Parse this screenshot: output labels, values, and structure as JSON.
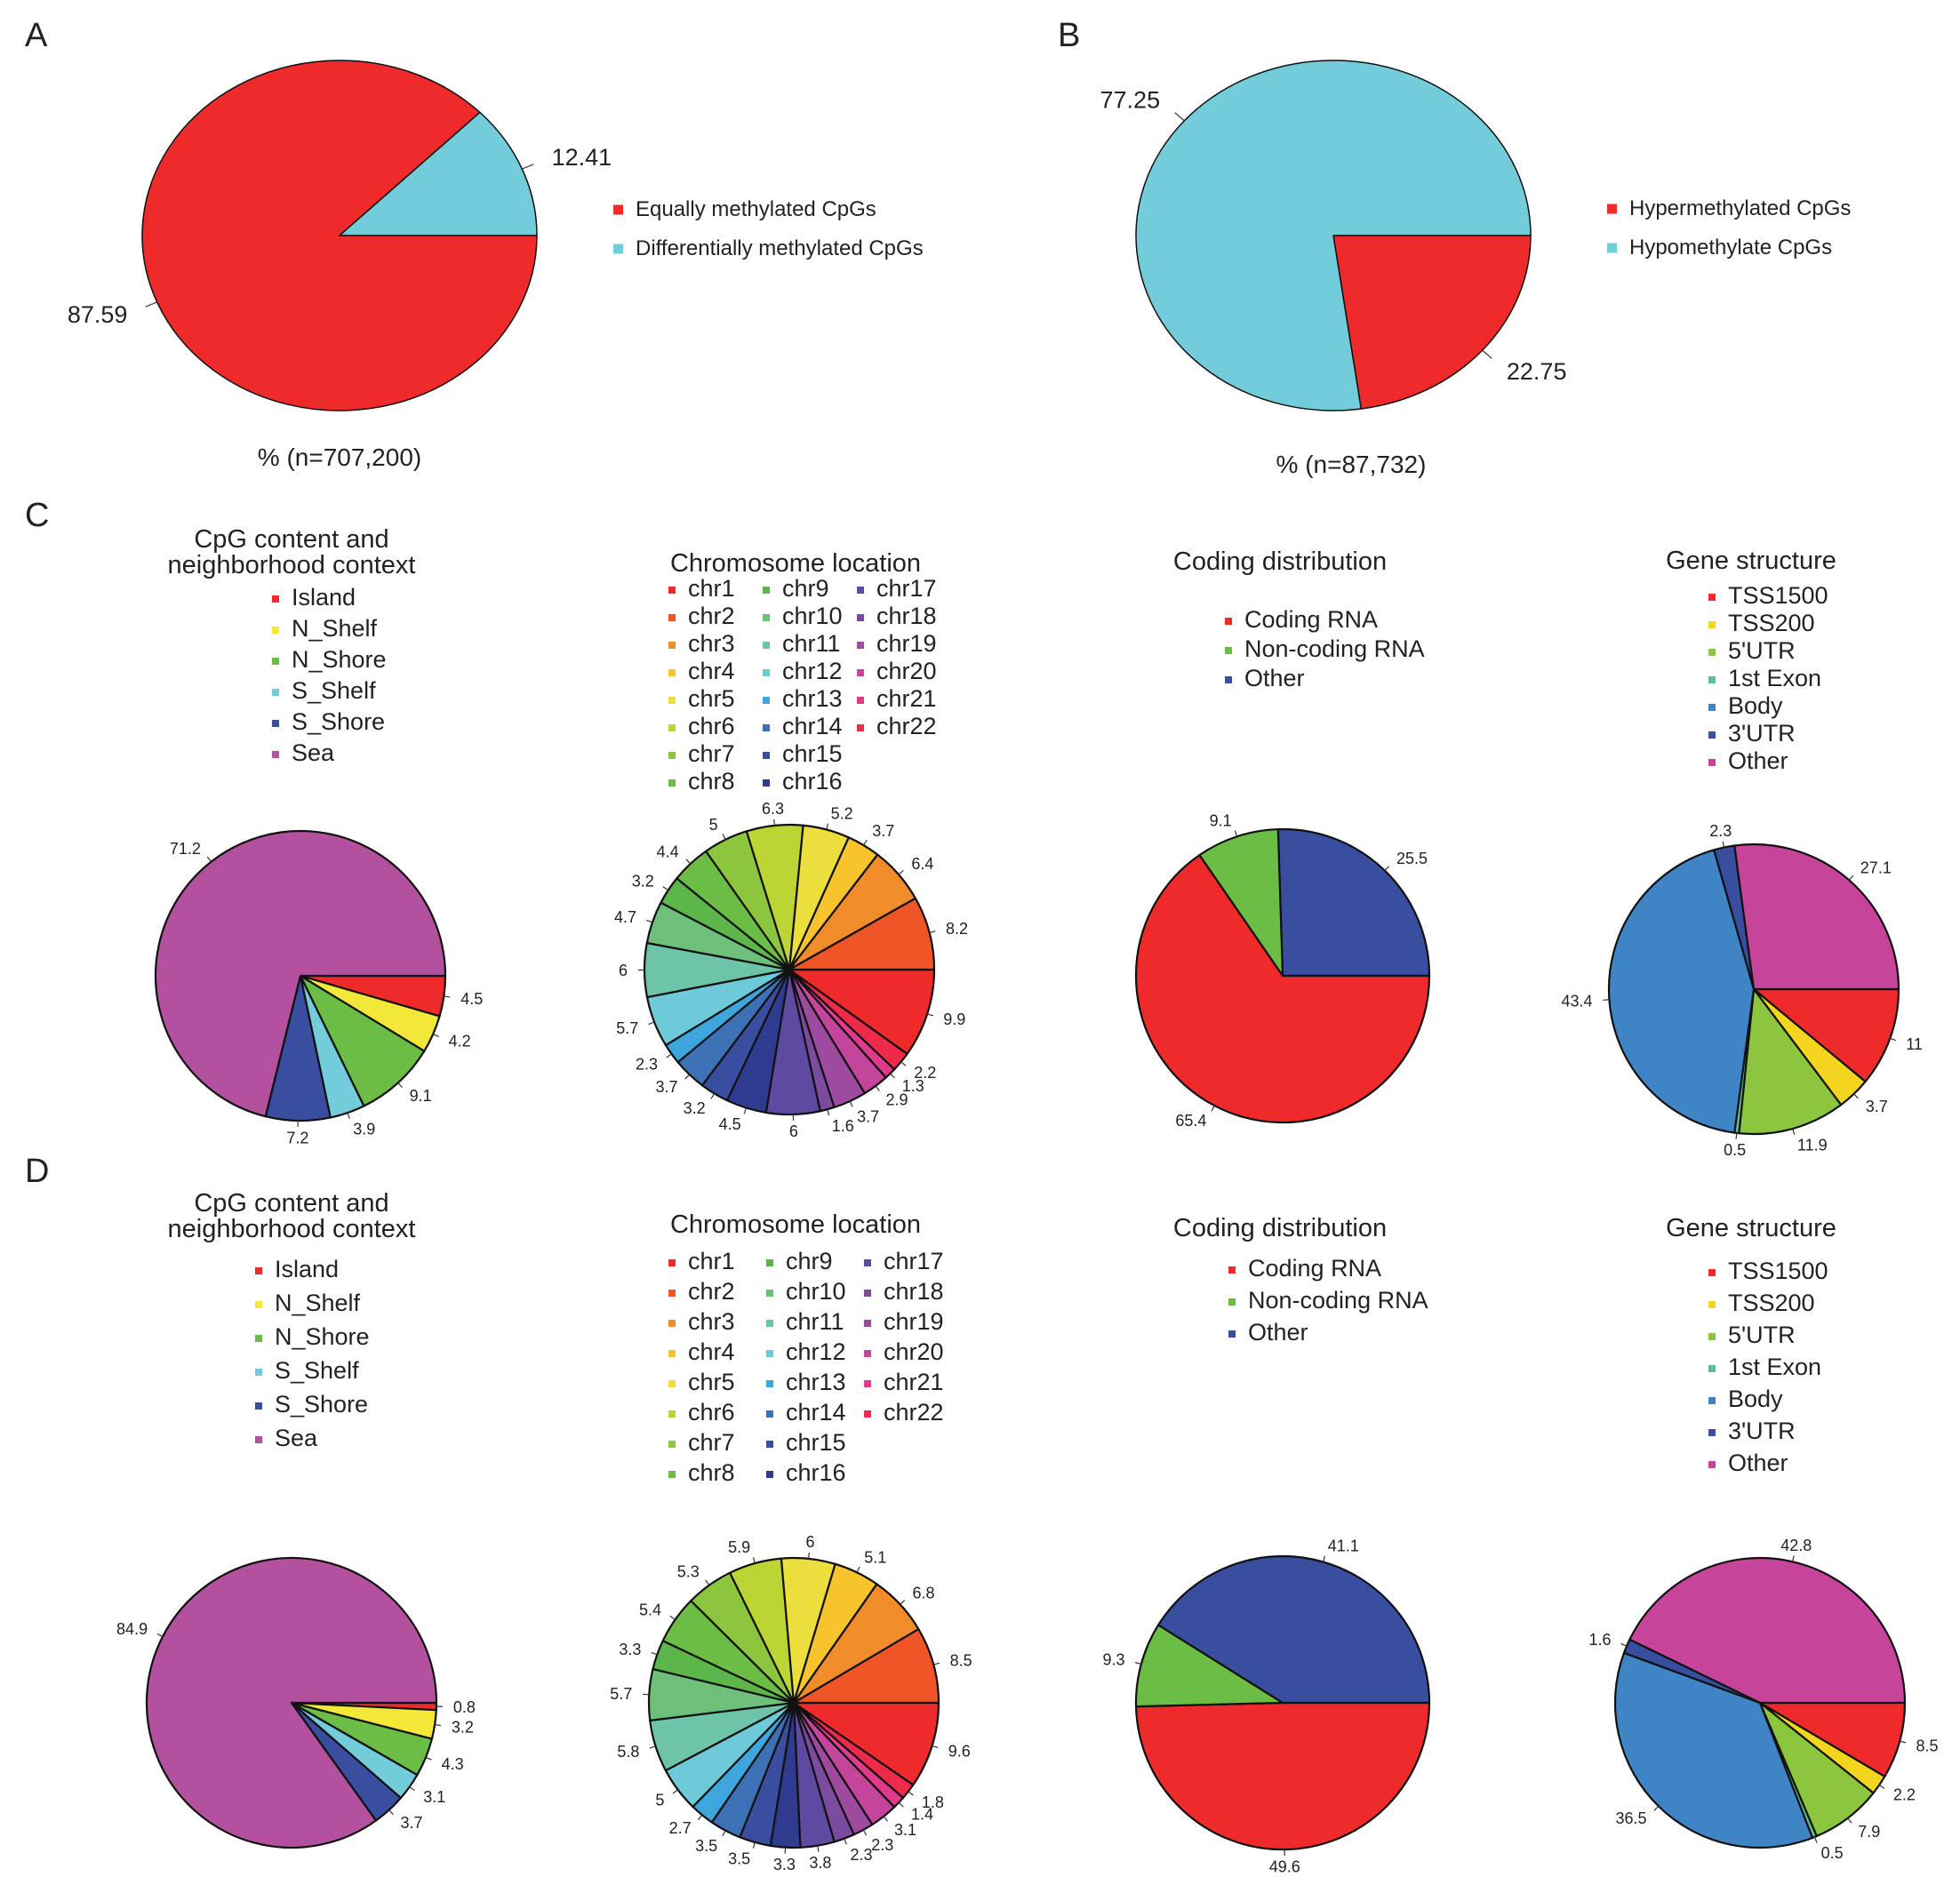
{
  "panels": [
    "A",
    "B",
    "C",
    "D"
  ],
  "chart_data": [
    {
      "type": "pie",
      "panel": "A",
      "title": "",
      "footer": "% (n=707,200)",
      "categories": [
        "Equally methylated CpGs",
        "Differentially methylated CpGs"
      ],
      "values": [
        87.59,
        12.41
      ],
      "colors": [
        "#ee2a2b",
        "#72ccd9"
      ],
      "value_labels": [
        "87.59",
        "12.41"
      ],
      "legend": [
        "Equally methylated CpGs",
        "Differentially methylated CpGs"
      ]
    },
    {
      "type": "pie",
      "panel": "B",
      "title": "",
      "footer": "% (n=87,732)",
      "categories": [
        "Hypermethylated CpGs",
        "Hypomethylate CpGs"
      ],
      "values": [
        22.75,
        77.25
      ],
      "colors": [
        "#ee2a2b",
        "#72ccd9"
      ],
      "value_labels": [
        "22.75",
        "77.25"
      ],
      "legend": [
        "Hypermethylated CpGs",
        "Hypomethylate CpGs"
      ]
    },
    {
      "type": "pie",
      "panel": "C",
      "title": "CpG content and neighborhood context",
      "title_lines": [
        "CpG content and",
        "neighborhood context"
      ],
      "legend": [
        "Island",
        "N_Shelf",
        "N_Shore",
        "S_Shelf",
        "S_Shore",
        "Sea"
      ],
      "legend_colors": [
        "#ee2a2b",
        "#f3e83a",
        "#6cbd45",
        "#72ccd9",
        "#3a4ea0",
        "#b3519e"
      ],
      "slice_order": [
        "Island",
        "N_Shelf",
        "N_Shore",
        "S_Shelf",
        "S_Shore",
        "Sea"
      ],
      "values": [
        4.5,
        4.2,
        9.1,
        3.9,
        7.2,
        71.2
      ],
      "colors": [
        "#ee2a2b",
        "#f3e83a",
        "#6cbd45",
        "#72ccd9",
        "#3a4ea0",
        "#b3519e"
      ],
      "value_labels": [
        "4.5",
        "4.2",
        "9.1",
        "3.9",
        "7.2",
        "71.2"
      ]
    },
    {
      "type": "pie",
      "panel": "C",
      "title": "Chromosome location",
      "title_lines": [
        "Chromosome location"
      ],
      "legend": [
        "chr1",
        "chr2",
        "chr3",
        "chr4",
        "chr5",
        "chr6",
        "chr7",
        "chr8",
        "chr9",
        "chr10",
        "chr11",
        "chr12",
        "chr13",
        "chr14",
        "chr15",
        "chr16",
        "chr17",
        "chr18",
        "chr19",
        "chr20",
        "chr21",
        "chr22"
      ],
      "legend_colors": [
        "#ee2a2b",
        "#ef5526",
        "#f18c2a",
        "#f7c42e",
        "#ecde3c",
        "#bcd534",
        "#8cc63f",
        "#6cbd45",
        "#5cb64a",
        "#6dbf7a",
        "#6ec4a8",
        "#6ec9d8",
        "#3ea6dc",
        "#3c72b5",
        "#3a4ea0",
        "#2e3b8f",
        "#5e4aa0",
        "#7a4b9e",
        "#9e4a9e",
        "#c4469c",
        "#e13a8a",
        "#ee2a4a"
      ],
      "slice_order": [
        "chr1",
        "chr22",
        "chr21",
        "chr20",
        "chr19",
        "chr18",
        "chr17",
        "chr16",
        "chr15",
        "chr14",
        "chr13",
        "chr12",
        "chr11",
        "chr10",
        "chr9",
        "chr8",
        "chr7",
        "chr6",
        "chr5",
        "chr4",
        "chr3",
        "chr2"
      ],
      "values": [
        9.9,
        2.2,
        1.3,
        2.9,
        3.7,
        1.6,
        6,
        4.5,
        3.2,
        3.7,
        2.3,
        5.7,
        6,
        4.7,
        3.2,
        4.4,
        5,
        6.3,
        5.2,
        3.7,
        6.4,
        8.2
      ],
      "colors": [
        "#ee2a2b",
        "#ee2a4a",
        "#e13a8a",
        "#c4469c",
        "#9e4a9e",
        "#7a4b9e",
        "#5e4aa0",
        "#2e3b8f",
        "#3a4ea0",
        "#3c72b5",
        "#3ea6dc",
        "#6ec9d8",
        "#6ec4a8",
        "#6dbf7a",
        "#5cb64a",
        "#6cbd45",
        "#8cc63f",
        "#bcd534",
        "#ecde3c",
        "#f7c42e",
        "#f18c2a",
        "#ef5526"
      ],
      "value_labels": [
        "9.9",
        "2.2",
        "1.3",
        "2.9",
        "3.7",
        "1.6",
        "6",
        "4.5",
        "3.2",
        "3.7",
        "2.3",
        "5.7",
        "6",
        "4.7",
        "3.2",
        "4.4",
        "5",
        "6.3",
        "5.2",
        "3.7",
        "6.4",
        "8.2"
      ]
    },
    {
      "type": "pie",
      "panel": "C",
      "title": "Coding distribution",
      "title_lines": [
        "Coding distribution"
      ],
      "legend": [
        "Coding RNA",
        "Non-coding RNA",
        "Other"
      ],
      "legend_colors": [
        "#ee2a2b",
        "#6cbd45",
        "#3a4ea0"
      ],
      "slice_order": [
        "Other",
        "Non-coding RNA",
        "Coding RNA"
      ],
      "values": [
        25.5,
        9.1,
        65.4
      ],
      "colors": [
        "#3a4ea0",
        "#6cbd45",
        "#ee2a2b"
      ],
      "value_labels": [
        "25.5",
        "9.1",
        "65.4"
      ]
    },
    {
      "type": "pie",
      "panel": "C",
      "title": "Gene structure",
      "title_lines": [
        "Gene structure"
      ],
      "legend": [
        "TSS1500",
        "TSS200",
        "5'UTR",
        "1st Exon",
        "Body",
        "3'UTR",
        "Other"
      ],
      "legend_colors": [
        "#ee2a2b",
        "#f3d51f",
        "#8cc63f",
        "#5fbf8f",
        "#3f85c6",
        "#3a4ea0",
        "#c7449b"
      ],
      "slice_order": [
        "TSS1500",
        "TSS200",
        "5'UTR",
        "1st Exon",
        "Body",
        "3'UTR",
        "Other"
      ],
      "values": [
        11,
        3.7,
        11.9,
        0.5,
        43.4,
        2.3,
        27.1
      ],
      "colors": [
        "#ee2a2b",
        "#f3d51f",
        "#8cc63f",
        "#5fbf8f",
        "#3f85c6",
        "#3a4ea0",
        "#c7449b"
      ],
      "value_labels": [
        "11",
        "3.7",
        "11.9",
        "0.5",
        "43.4",
        "2.3",
        "27.1"
      ]
    },
    {
      "type": "pie",
      "panel": "D",
      "title": "CpG content and neighborhood context",
      "title_lines": [
        "CpG content and",
        "neighborhood context"
      ],
      "legend": [
        "Island",
        "N_Shelf",
        "N_Shore",
        "S_Shelf",
        "S_Shore",
        "Sea"
      ],
      "legend_colors": [
        "#ee2a2b",
        "#f3e83a",
        "#6cbd45",
        "#72ccd9",
        "#3a4ea0",
        "#b3519e"
      ],
      "slice_order": [
        "Island",
        "N_Shelf",
        "N_Shore",
        "S_Shelf",
        "S_Shore",
        "Sea"
      ],
      "values": [
        0.8,
        3.2,
        4.3,
        3.1,
        3.7,
        84.9
      ],
      "colors": [
        "#ee2a2b",
        "#f3e83a",
        "#6cbd45",
        "#72ccd9",
        "#3a4ea0",
        "#b3519e"
      ],
      "value_labels": [
        "0.8",
        "3.2",
        "4.3",
        "3.1",
        "3.7",
        "84.9"
      ]
    },
    {
      "type": "pie",
      "panel": "D",
      "title": "Chromosome location",
      "title_lines": [
        "Chromosome location"
      ],
      "legend": [
        "chr1",
        "chr2",
        "chr3",
        "chr4",
        "chr5",
        "chr6",
        "chr7",
        "chr8",
        "chr9",
        "chr10",
        "chr11",
        "chr12",
        "chr13",
        "chr14",
        "chr15",
        "chr16",
        "chr17",
        "chr18",
        "chr19",
        "chr20",
        "chr21",
        "chr22"
      ],
      "legend_colors": [
        "#ee2a2b",
        "#ef5526",
        "#f18c2a",
        "#f7c42e",
        "#ecde3c",
        "#bcd534",
        "#8cc63f",
        "#6cbd45",
        "#5cb64a",
        "#6dbf7a",
        "#6ec4a8",
        "#6ec9d8",
        "#3ea6dc",
        "#3c72b5",
        "#3a4ea0",
        "#2e3b8f",
        "#5e4aa0",
        "#7a4b9e",
        "#9e4a9e",
        "#c4469c",
        "#e13a8a",
        "#ee2a4a"
      ],
      "slice_order": [
        "chr1",
        "chr22",
        "chr21",
        "chr20",
        "chr19",
        "chr18",
        "chr17",
        "chr16",
        "chr15",
        "chr14",
        "chr13",
        "chr12",
        "chr11",
        "chr10",
        "chr9",
        "chr8",
        "chr7",
        "chr6",
        "chr5",
        "chr4",
        "chr3",
        "chr2"
      ],
      "values": [
        9.6,
        1.8,
        1.4,
        3.1,
        2.3,
        2.3,
        3.8,
        3.3,
        3.5,
        3.5,
        2.7,
        5,
        5.8,
        5.7,
        3.3,
        5.4,
        5.3,
        5.9,
        6,
        5.1,
        6.8,
        8.5
      ],
      "colors": [
        "#ee2a2b",
        "#ee2a4a",
        "#e13a8a",
        "#c4469c",
        "#9e4a9e",
        "#7a4b9e",
        "#5e4aa0",
        "#2e3b8f",
        "#3a4ea0",
        "#3c72b5",
        "#3ea6dc",
        "#6ec9d8",
        "#6ec4a8",
        "#6dbf7a",
        "#5cb64a",
        "#6cbd45",
        "#8cc63f",
        "#bcd534",
        "#ecde3c",
        "#f7c42e",
        "#f18c2a",
        "#ef5526"
      ],
      "value_labels": [
        "9.6",
        "1.8",
        "1.4",
        "3.1",
        "2.3",
        "2.3",
        "3.8",
        "3.3",
        "3.5",
        "3.5",
        "2.7",
        "5",
        "5.8",
        "5.7",
        "3.3",
        "5.4",
        "5.3",
        "5.9",
        "6",
        "5.1",
        "6.8",
        "8.5"
      ]
    },
    {
      "type": "pie",
      "panel": "D",
      "title": "Coding distribution",
      "title_lines": [
        "Coding distribution"
      ],
      "legend": [
        "Coding RNA",
        "Non-coding RNA",
        "Other"
      ],
      "legend_colors": [
        "#ee2a2b",
        "#6cbd45",
        "#3a4ea0"
      ],
      "slice_order": [
        "Coding RNA",
        "Non-coding RNA",
        "Other"
      ],
      "values": [
        49.6,
        9.3,
        41.1
      ],
      "colors": [
        "#ee2a2b",
        "#6cbd45",
        "#3a4ea0"
      ],
      "value_labels": [
        "49.6",
        "9.3",
        "41.1"
      ]
    },
    {
      "type": "pie",
      "panel": "D",
      "title": "Gene structure",
      "title_lines": [
        "Gene structure"
      ],
      "legend": [
        "TSS1500",
        "TSS200",
        "5'UTR",
        "1st Exon",
        "Body",
        "3'UTR",
        "Other"
      ],
      "legend_colors": [
        "#ee2a2b",
        "#f3d51f",
        "#8cc63f",
        "#5fbf8f",
        "#3f85c6",
        "#3a4ea0",
        "#c7449b"
      ],
      "slice_order": [
        "TSS1500",
        "TSS200",
        "5'UTR",
        "1st Exon",
        "Body",
        "3'UTR",
        "Other"
      ],
      "values": [
        8.5,
        2.2,
        7.9,
        0.5,
        36.5,
        1.6,
        42.8
      ],
      "colors": [
        "#ee2a2b",
        "#f3d51f",
        "#8cc63f",
        "#5fbf8f",
        "#3f85c6",
        "#3a4ea0",
        "#c7449b"
      ],
      "value_labels": [
        "8.5",
        "2.2",
        "7.9",
        "0.5",
        "36.5",
        "1.6",
        "42.8"
      ]
    }
  ]
}
